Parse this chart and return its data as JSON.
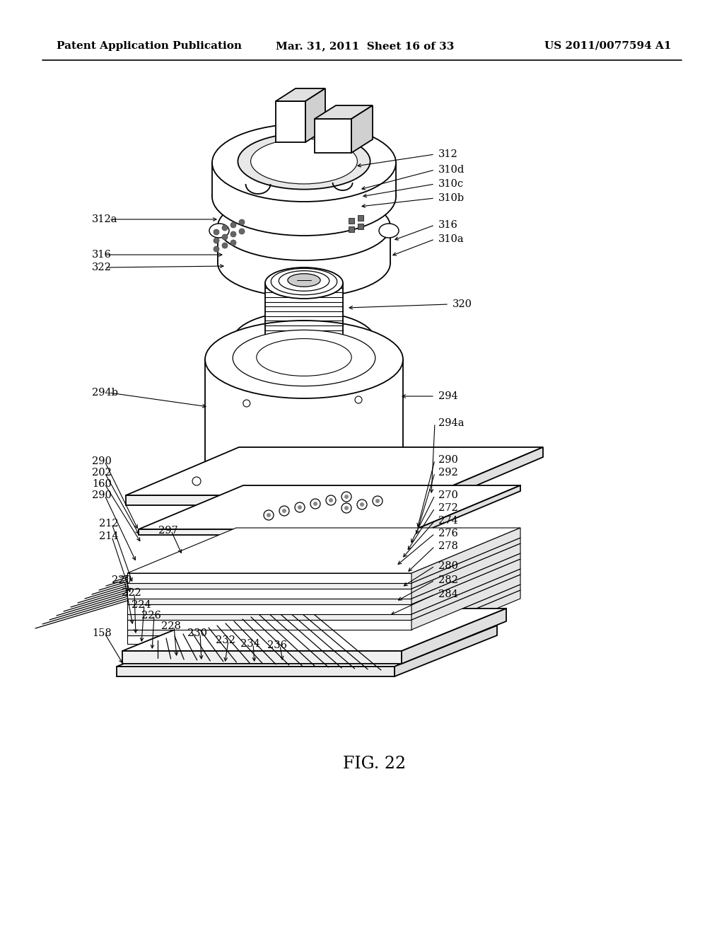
{
  "title_left": "Patent Application Publication",
  "title_mid": "Mar. 31, 2011  Sheet 16 of 33",
  "title_right": "US 2011/0077594 A1",
  "fig_label": "FIG. 22",
  "bg_color": "#ffffff",
  "line_color": "#000000",
  "header_fontsize": 11,
  "fig_label_fontsize": 17,
  "annotation_fontsize": 10.5
}
